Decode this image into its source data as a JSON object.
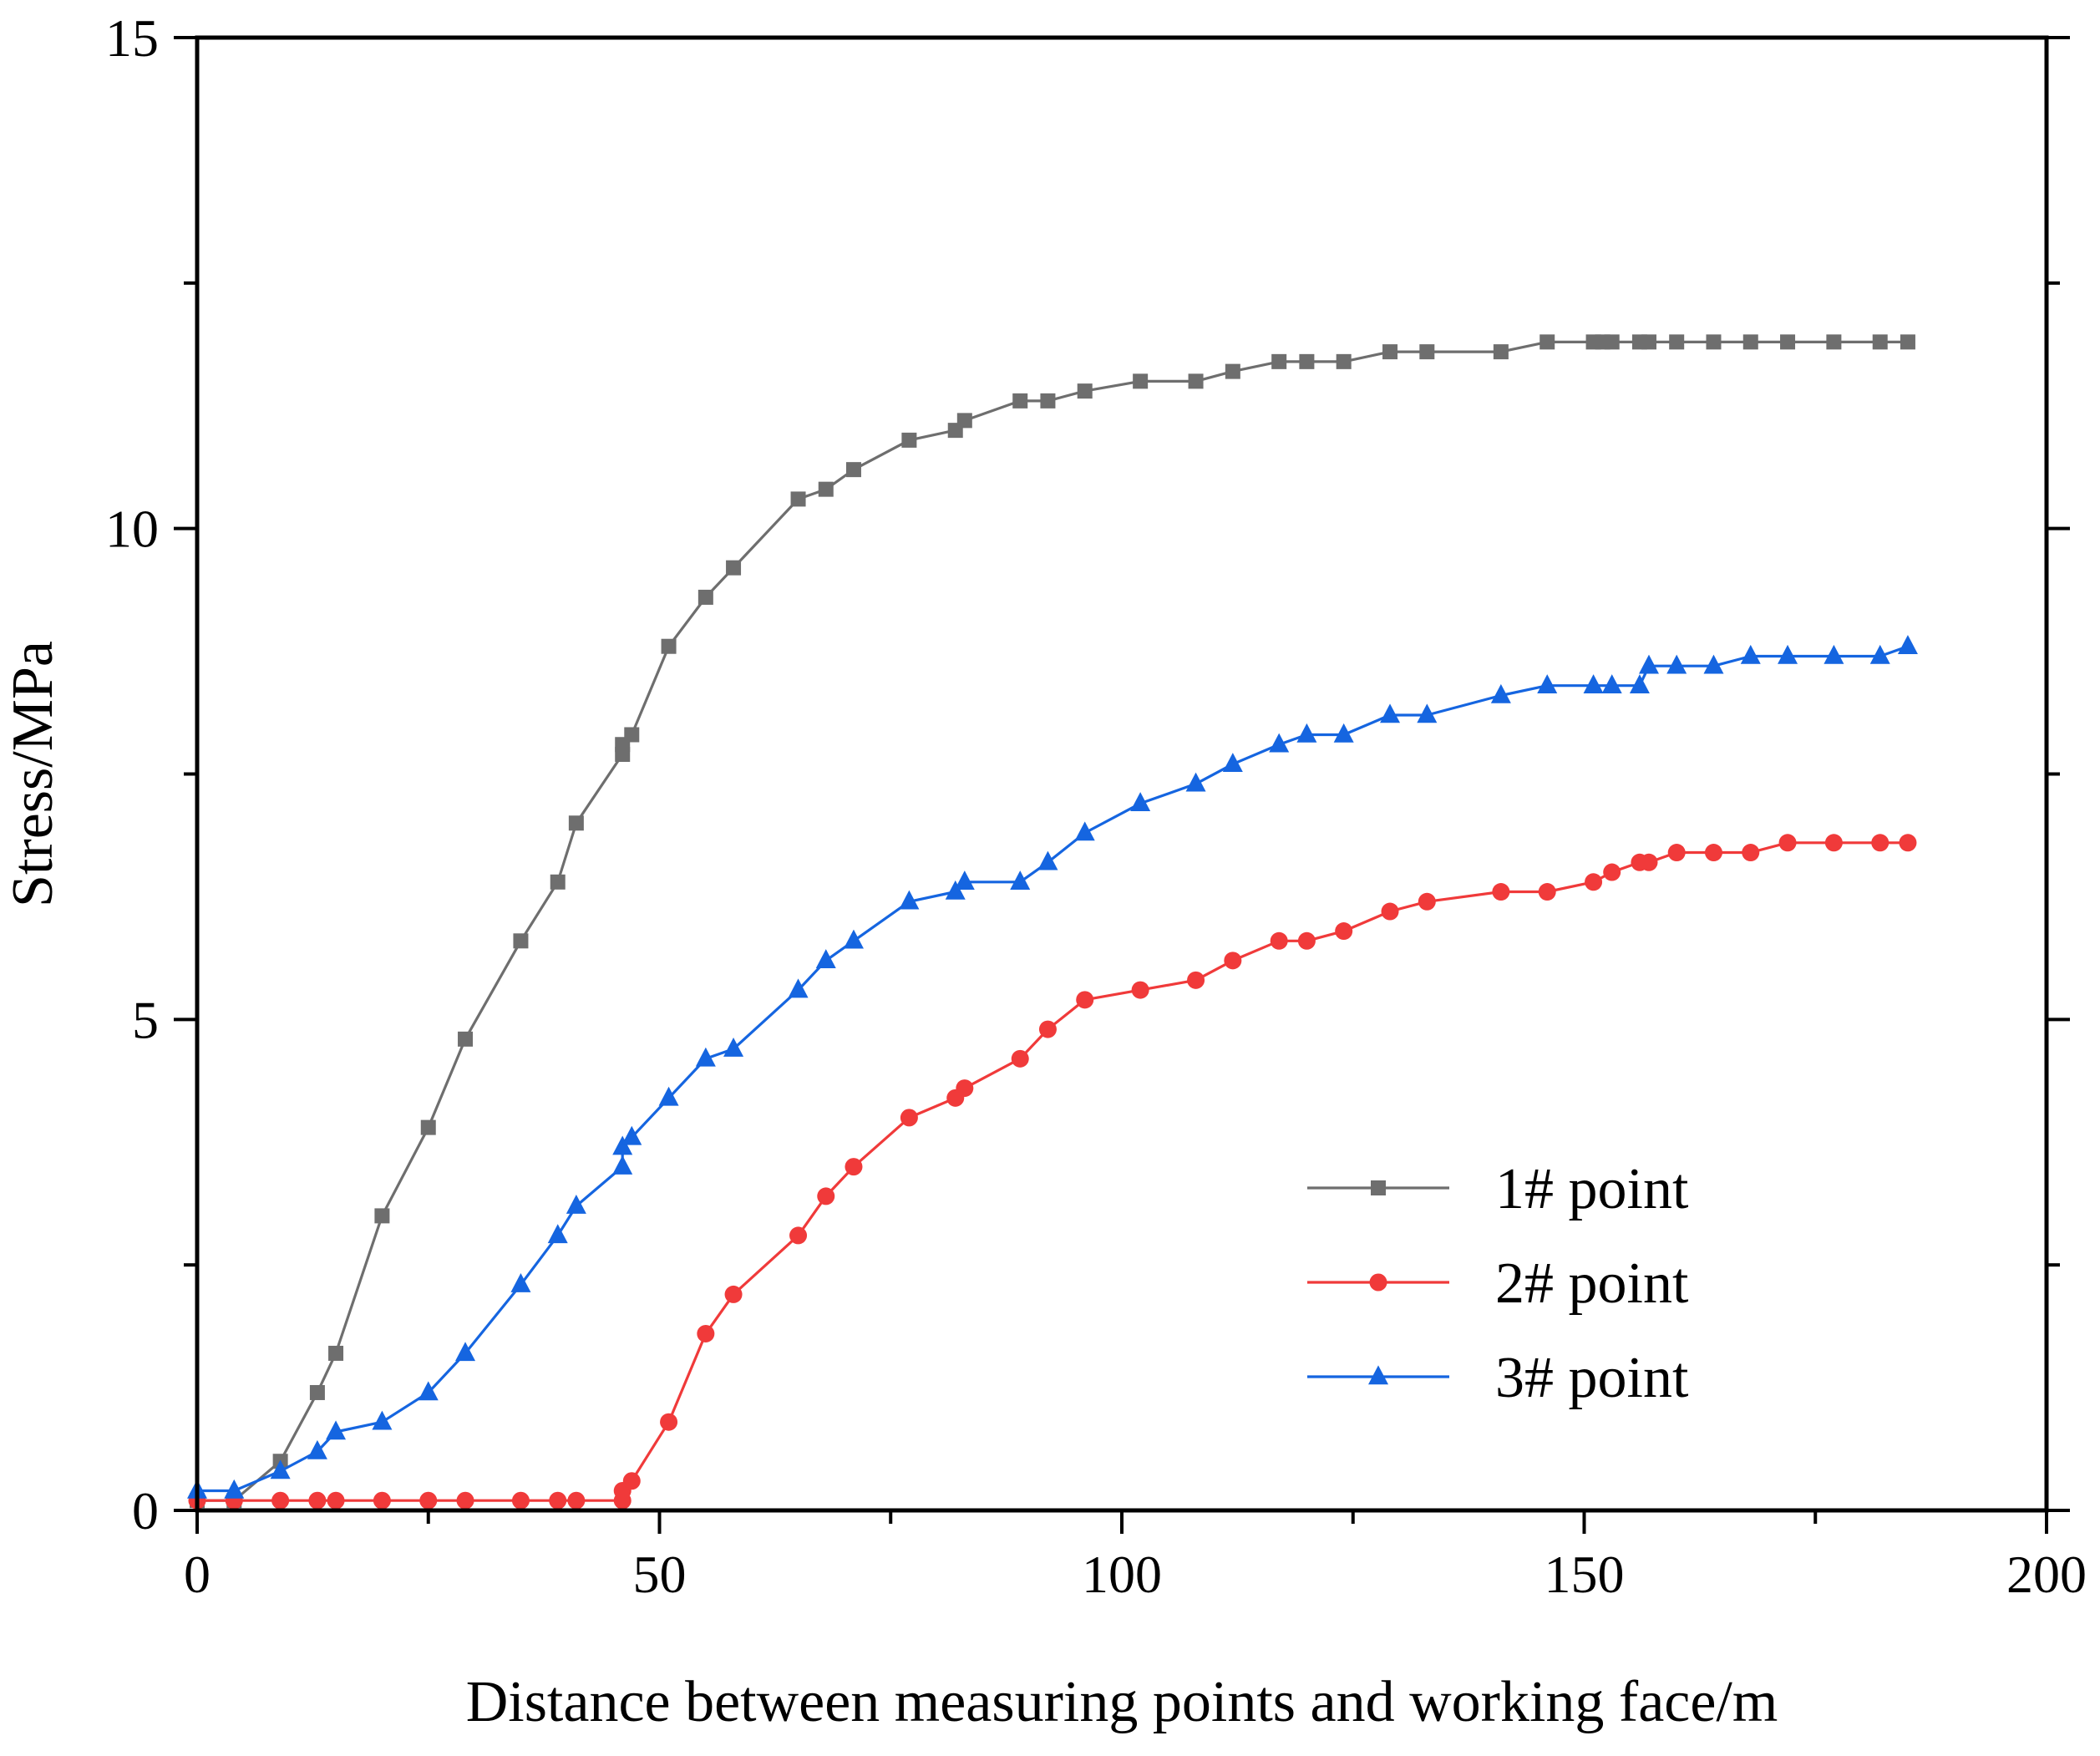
{
  "chart_data": {
    "type": "line",
    "title": "",
    "xlabel": "Distance between measuring points and working face/m",
    "ylabel": "Stress/MPa",
    "xlim": [
      0,
      200
    ],
    "ylim": [
      0,
      15
    ],
    "x_ticks": [
      0,
      50,
      100,
      150,
      200
    ],
    "y_ticks": [
      0,
      5,
      10,
      15
    ],
    "x_minor_step": 25,
    "y_minor_step": 2.5,
    "grid": false,
    "legend_position": "lower-right",
    "series": [
      {
        "name": "1# point",
        "color": "#6e6e6e",
        "marker": "square",
        "x": [
          0,
          4,
          9,
          13,
          15,
          20,
          25,
          29,
          35,
          39,
          41,
          46,
          46,
          47,
          51,
          55,
          58,
          65,
          68,
          71,
          77,
          82,
          83,
          89,
          92,
          96,
          102,
          108,
          112,
          117,
          120,
          124,
          129,
          133,
          141,
          146,
          151,
          152,
          153,
          156,
          157,
          160,
          164,
          168,
          172,
          177,
          182,
          185
        ],
        "y": [
          0.1,
          0.1,
          0.5,
          1.2,
          1.6,
          3.0,
          3.9,
          4.8,
          5.8,
          6.4,
          7.0,
          7.7,
          7.8,
          7.9,
          8.8,
          9.3,
          9.6,
          10.3,
          10.4,
          10.6,
          10.9,
          11.0,
          11.1,
          11.3,
          11.3,
          11.4,
          11.5,
          11.5,
          11.6,
          11.7,
          11.7,
          11.7,
          11.8,
          11.8,
          11.8,
          11.9,
          11.9,
          11.9,
          11.9,
          11.9,
          11.9,
          11.9,
          11.9,
          11.9,
          11.9,
          11.9,
          11.9,
          11.9
        ]
      },
      {
        "name": "2# point",
        "color": "#f03a3a",
        "marker": "circle",
        "x": [
          0,
          4,
          9,
          13,
          15,
          20,
          25,
          29,
          35,
          39,
          41,
          46,
          46,
          47,
          51,
          55,
          58,
          65,
          68,
          71,
          77,
          82,
          83,
          89,
          92,
          96,
          102,
          108,
          112,
          117,
          120,
          124,
          129,
          133,
          141,
          146,
          151,
          153,
          156,
          157,
          160,
          164,
          168,
          172,
          177,
          182,
          185
        ],
        "y": [
          0.1,
          0.1,
          0.1,
          0.1,
          0.1,
          0.1,
          0.1,
          0.1,
          0.1,
          0.1,
          0.1,
          0.1,
          0.2,
          0.3,
          0.9,
          1.8,
          2.2,
          2.8,
          3.2,
          3.5,
          4.0,
          4.2,
          4.3,
          4.6,
          4.9,
          5.2,
          5.3,
          5.4,
          5.6,
          5.8,
          5.8,
          5.9,
          6.1,
          6.2,
          6.3,
          6.3,
          6.4,
          6.5,
          6.6,
          6.6,
          6.7,
          6.7,
          6.7,
          6.8,
          6.8,
          6.8,
          6.8
        ]
      },
      {
        "name": "3# point",
        "color": "#1565e0",
        "marker": "triangle",
        "x": [
          0,
          4,
          9,
          13,
          15,
          20,
          25,
          29,
          35,
          39,
          41,
          46,
          46,
          47,
          51,
          55,
          58,
          65,
          68,
          71,
          77,
          82,
          83,
          89,
          92,
          96,
          102,
          108,
          112,
          117,
          120,
          124,
          129,
          133,
          141,
          146,
          151,
          153,
          156,
          157,
          160,
          164,
          168,
          172,
          177,
          182,
          185
        ],
        "y": [
          0.2,
          0.2,
          0.4,
          0.6,
          0.8,
          0.9,
          1.2,
          1.6,
          2.3,
          2.8,
          3.1,
          3.5,
          3.7,
          3.8,
          4.2,
          4.6,
          4.7,
          5.3,
          5.6,
          5.8,
          6.2,
          6.3,
          6.4,
          6.4,
          6.6,
          6.9,
          7.2,
          7.4,
          7.6,
          7.8,
          7.9,
          7.9,
          8.1,
          8.1,
          8.3,
          8.4,
          8.4,
          8.4,
          8.4,
          8.6,
          8.6,
          8.6,
          8.7,
          8.7,
          8.7,
          8.7,
          8.8
        ]
      }
    ]
  }
}
